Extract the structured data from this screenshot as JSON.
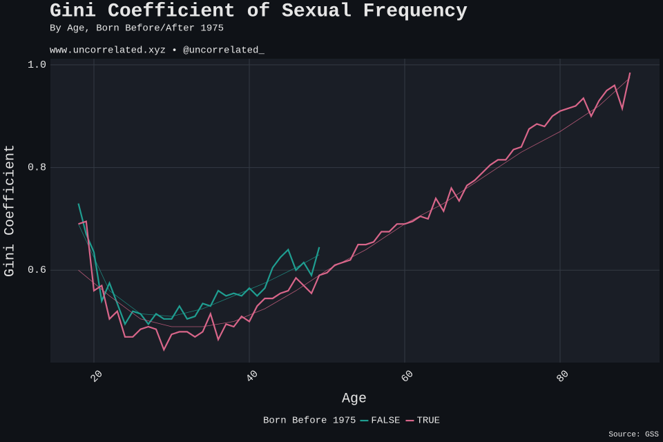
{
  "chart_data": {
    "type": "line",
    "title": "Gini Coefficient of Sexual Frequency",
    "subtitle": "By Age, Born Before/After 1975",
    "caption": "www.uncorrelated.xyz • @uncorrelated_",
    "source": "Source: GSS",
    "x_label": "Age",
    "y_label": "Gini Coefficient",
    "legend_title": "Born Before 1975",
    "legend": "bottom",
    "grid": true,
    "xlim": [
      14.4,
      92.8
    ],
    "ylim": [
      0.42,
      1.012
    ],
    "xticks": [
      20,
      40,
      60,
      80
    ],
    "yticks": [
      0.6,
      0.8,
      {
        "value": 1,
        "label": "1.0"
      }
    ],
    "series": [
      {
        "name": "FALSE",
        "color": "#1f9e91",
        "x": [
          18,
          19,
          20,
          21,
          22,
          23,
          24,
          25,
          26,
          27,
          28,
          29,
          30,
          31,
          32,
          33,
          34,
          35,
          36,
          37,
          38,
          39,
          40,
          41,
          42,
          43,
          44,
          45,
          46,
          47,
          48,
          49
        ],
        "values": [
          0.73,
          0.67,
          0.635,
          0.54,
          0.575,
          0.535,
          0.495,
          0.52,
          0.515,
          0.495,
          0.515,
          0.505,
          0.505,
          0.53,
          0.505,
          0.51,
          0.535,
          0.53,
          0.56,
          0.55,
          0.555,
          0.55,
          0.565,
          0.55,
          0.565,
          0.605,
          0.625,
          0.64,
          0.6,
          0.615,
          0.59,
          0.645
        ],
        "trend_x": [
          18,
          22,
          26,
          30,
          34,
          38,
          42,
          46,
          49
        ],
        "trend_values": [
          0.69,
          0.56,
          0.515,
          0.51,
          0.525,
          0.55,
          0.575,
          0.605,
          0.63
        ]
      },
      {
        "name": "TRUE",
        "color": "#d9668a",
        "x": [
          18,
          19,
          20,
          21,
          22,
          23,
          24,
          25,
          26,
          27,
          28,
          29,
          30,
          31,
          32,
          33,
          34,
          35,
          36,
          37,
          38,
          39,
          40,
          41,
          42,
          43,
          44,
          45,
          46,
          47,
          48,
          49,
          50,
          51,
          52,
          53,
          54,
          55,
          56,
          57,
          58,
          59,
          60,
          61,
          62,
          63,
          64,
          65,
          66,
          67,
          68,
          69,
          70,
          71,
          72,
          73,
          74,
          75,
          76,
          77,
          78,
          79,
          80,
          81,
          82,
          83,
          84,
          85,
          86,
          87,
          88,
          89
        ],
        "values": [
          0.69,
          0.695,
          0.56,
          0.57,
          0.505,
          0.52,
          0.47,
          0.47,
          0.485,
          0.49,
          0.485,
          0.445,
          0.475,
          0.48,
          0.48,
          0.47,
          0.48,
          0.515,
          0.465,
          0.495,
          0.49,
          0.51,
          0.5,
          0.53,
          0.545,
          0.545,
          0.555,
          0.56,
          0.585,
          0.57,
          0.555,
          0.59,
          0.595,
          0.61,
          0.615,
          0.62,
          0.65,
          0.65,
          0.655,
          0.675,
          0.675,
          0.69,
          0.69,
          0.695,
          0.705,
          0.7,
          0.74,
          0.715,
          0.76,
          0.735,
          0.765,
          0.775,
          0.79,
          0.805,
          0.815,
          0.815,
          0.835,
          0.84,
          0.875,
          0.885,
          0.88,
          0.9,
          0.91,
          0.915,
          0.92,
          0.935,
          0.9,
          0.93,
          0.95,
          0.96,
          0.915,
          0.985
        ],
        "trend_x": [
          18,
          22,
          26,
          30,
          34,
          38,
          42,
          46,
          50,
          55,
          60,
          65,
          70,
          75,
          80,
          85,
          89
        ],
        "trend_values": [
          0.6,
          0.55,
          0.505,
          0.49,
          0.49,
          0.5,
          0.525,
          0.56,
          0.6,
          0.64,
          0.69,
          0.73,
          0.78,
          0.83,
          0.87,
          0.92,
          0.975
        ]
      }
    ]
  }
}
